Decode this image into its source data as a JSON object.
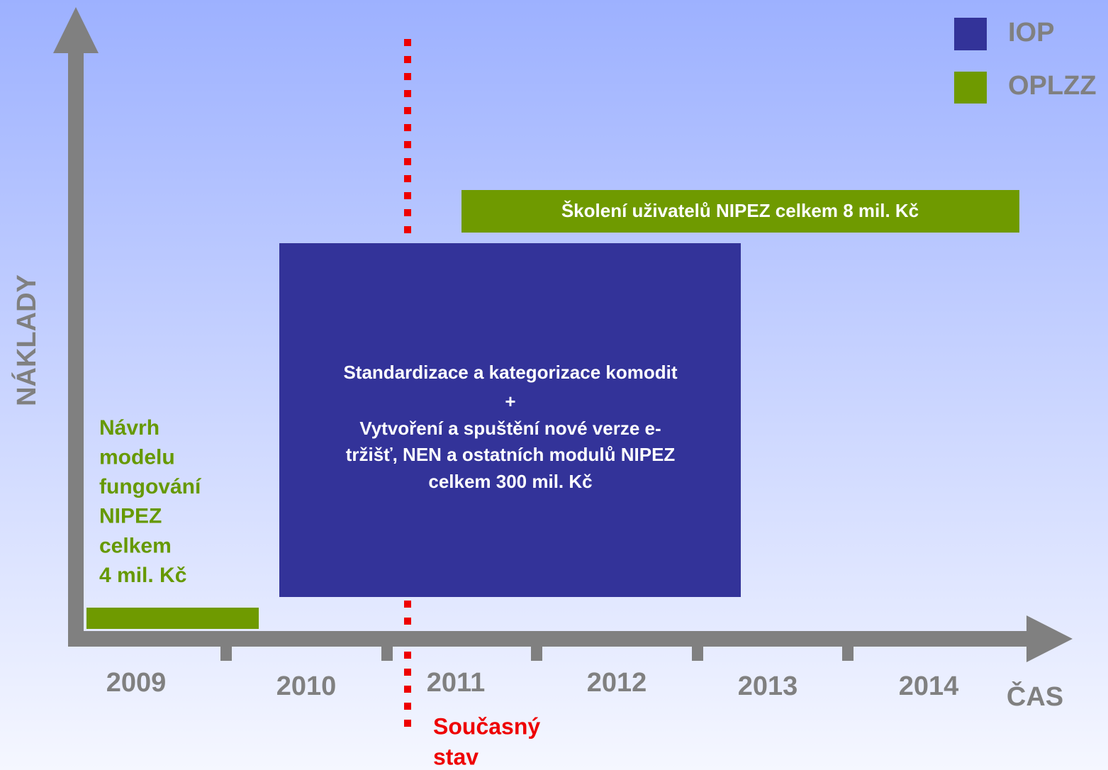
{
  "axes": {
    "y_label": "NÁKLADY",
    "x_label": "ČAS"
  },
  "years": [
    "2009",
    "2010",
    "2011",
    "2012",
    "2013",
    "2014"
  ],
  "legend": [
    {
      "label": "IOP",
      "color": "#333399"
    },
    {
      "label": "OPLZZ",
      "color": "#6f9a00"
    }
  ],
  "blocks": {
    "training": "Školení uživatelů NIPEZ celkem 8 mil. Kč",
    "main": [
      "Standardizace a kategorizace komodit",
      "+",
      "Vytvoření a spuštění nové verze e-",
      "tržišť, NEN a ostatních modulů NIPEZ",
      "celkem 300 mil. Kč"
    ],
    "model": [
      "Návrh",
      "modelu",
      "fungování",
      "NIPEZ",
      "celkem",
      "4 mil. Kč"
    ]
  },
  "current_state": [
    "Současný",
    "stav"
  ]
}
